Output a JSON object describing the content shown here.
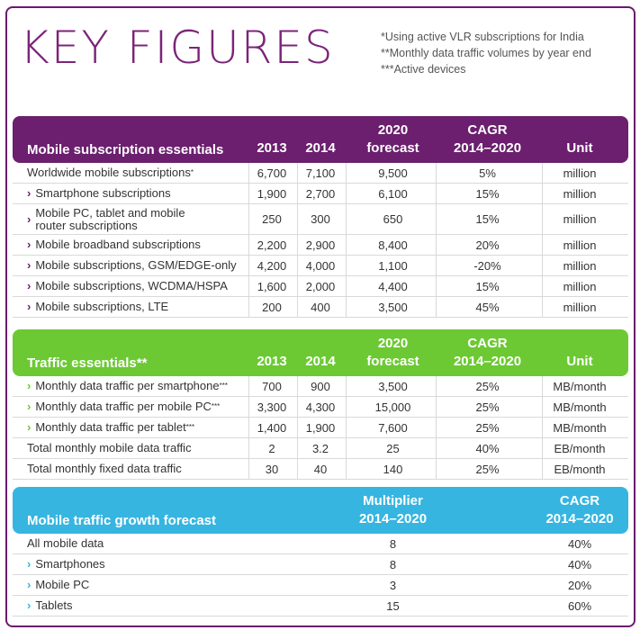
{
  "title": "KEY FIGURES",
  "notes": [
    "*Using active VLR subscriptions for India",
    "**Monthly data traffic volumes by year end",
    "***Active devices"
  ],
  "subscriptions": {
    "header": {
      "label": "Mobile subscription essentials",
      "y2013": "2013",
      "y2014": "2014",
      "forecast_top": "2020",
      "forecast_bottom": "forecast",
      "cagr_top": "CAGR",
      "cagr_bottom": "2014–2020",
      "unit": "Unit"
    },
    "rows": [
      {
        "label": "Worldwide mobile subscriptions",
        "mark": "*",
        "v2013": "6,700",
        "v2014": "7,100",
        "f2020": "9,500",
        "cagr": "5%",
        "unit": "million"
      },
      {
        "label": "Smartphone subscriptions",
        "mark": "",
        "v2013": "1,900",
        "v2014": "2,700",
        "f2020": "6,100",
        "cagr": "15%",
        "unit": "million"
      },
      {
        "label": "Mobile PC, tablet and mobile",
        "label2": "router subscriptions",
        "v2013": "250",
        "v2014": "300",
        "f2020": "650",
        "cagr": "15%",
        "unit": "million"
      },
      {
        "label": "Mobile broadband subscriptions",
        "v2013": "2,200",
        "v2014": "2,900",
        "f2020": "8,400",
        "cagr": "20%",
        "unit": "million"
      },
      {
        "label": "Mobile subscriptions, GSM/EDGE-only",
        "v2013": "4,200",
        "v2014": "4,000",
        "f2020": "1,100",
        "cagr": "-20%",
        "unit": "million"
      },
      {
        "label": "Mobile subscriptions, WCDMA/HSPA",
        "v2013": "1,600",
        "v2014": "2,000",
        "f2020": "4,400",
        "cagr": "15%",
        "unit": "million"
      },
      {
        "label": "Mobile subscriptions, LTE",
        "v2013": "200",
        "v2014": "400",
        "f2020": "3,500",
        "cagr": "45%",
        "unit": "million"
      }
    ]
  },
  "traffic": {
    "header": {
      "label": "Traffic essentials**",
      "y2013": "2013",
      "y2014": "2014",
      "forecast_top": "2020",
      "forecast_bottom": "forecast",
      "cagr_top": "CAGR",
      "cagr_bottom": "2014–2020",
      "unit": "Unit"
    },
    "rows": [
      {
        "label": "Monthly data traffic per smartphone",
        "mark": "***",
        "v2013": "700",
        "v2014": "900",
        "f2020": "3,500",
        "cagr": "25%",
        "unit": "MB/month"
      },
      {
        "label": "Monthly data traffic per mobile PC",
        "mark": "***",
        "v2013": "3,300",
        "v2014": "4,300",
        "f2020": "15,000",
        "cagr": "25%",
        "unit": "MB/month"
      },
      {
        "label": "Monthly data traffic per tablet",
        "mark": "***",
        "v2013": "1,400",
        "v2014": "1,900",
        "f2020": "7,600",
        "cagr": "25%",
        "unit": "MB/month"
      },
      {
        "label": "Total monthly mobile data traffic",
        "mark": "",
        "v2013": "2",
        "v2014": "3.2",
        "f2020": "25",
        "cagr": "40%",
        "unit": "EB/month"
      },
      {
        "label": "Total monthly fixed data traffic",
        "mark": "",
        "v2013": "30",
        "v2014": "40",
        "f2020": "140",
        "cagr": "25%",
        "unit": "EB/month"
      }
    ]
  },
  "growth": {
    "header": {
      "label": "Mobile traffic growth forecast",
      "mult_top": "Multiplier",
      "mult_bottom": "2014–2020",
      "cagr_top": "CAGR",
      "cagr_bottom": "2014–2020"
    },
    "rows": [
      {
        "label": "All mobile data",
        "mult": "8",
        "cagr": "40%"
      },
      {
        "label": "Smartphones",
        "mult": "8",
        "cagr": "40%"
      },
      {
        "label": "Mobile PC",
        "mult": "3",
        "cagr": "20%"
      },
      {
        "label": "Tablets",
        "mult": "15",
        "cagr": "60%"
      }
    ]
  },
  "colors": {
    "purple": "#6b1f6e",
    "green": "#6cc933",
    "blue": "#36b5e0",
    "title": "#7b2478"
  }
}
